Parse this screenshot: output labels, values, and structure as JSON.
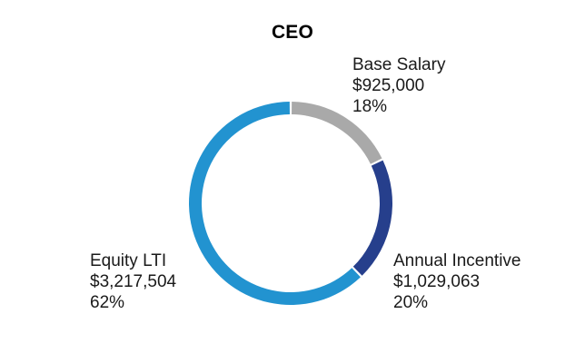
{
  "chart_data": {
    "type": "pie",
    "variant": "donut",
    "title": "CEO",
    "categories": [
      "Base Salary",
      "Annual Incentive",
      "Equity LTI"
    ],
    "values": [
      925000,
      1029063,
      3217504
    ],
    "value_labels": [
      "$925,000",
      "$1,029,063",
      "$3,217,504"
    ],
    "percent_labels": [
      "18%",
      "20%",
      "62%"
    ],
    "colors": [
      "#a9a9a9",
      "#263f8c",
      "#2293d0"
    ],
    "start_angle_deg": 0,
    "direction": "clockwise"
  }
}
